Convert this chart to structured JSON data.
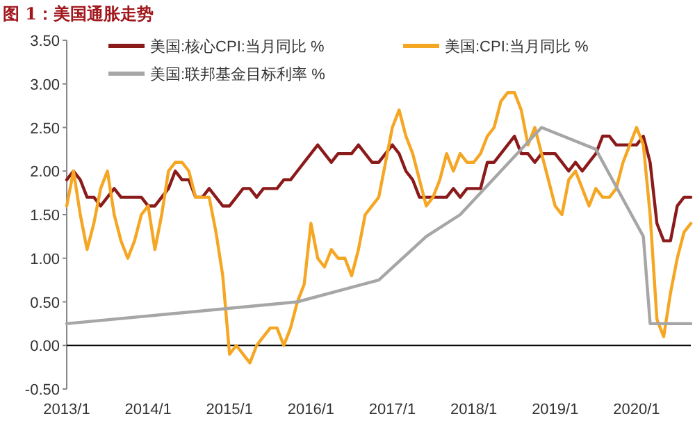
{
  "chart_data": {
    "type": "line",
    "title": "图 1：美国通胀走势",
    "legend": "top",
    "line_style": "solid",
    "marker": "none",
    "x": [
      "2013-01",
      "2013-02",
      "2013-03",
      "2013-04",
      "2013-05",
      "2013-06",
      "2013-07",
      "2013-08",
      "2013-09",
      "2013-10",
      "2013-11",
      "2013-12",
      "2014-01",
      "2014-02",
      "2014-03",
      "2014-04",
      "2014-05",
      "2014-06",
      "2014-07",
      "2014-08",
      "2014-09",
      "2014-10",
      "2014-11",
      "2014-12",
      "2015-01",
      "2015-02",
      "2015-03",
      "2015-04",
      "2015-05",
      "2015-06",
      "2015-07",
      "2015-08",
      "2015-09",
      "2015-10",
      "2015-11",
      "2015-12",
      "2016-01",
      "2016-02",
      "2016-03",
      "2016-04",
      "2016-05",
      "2016-06",
      "2016-07",
      "2016-08",
      "2016-09",
      "2016-10",
      "2016-11",
      "2016-12",
      "2017-01",
      "2017-02",
      "2017-03",
      "2017-04",
      "2017-05",
      "2017-06",
      "2017-07",
      "2017-08",
      "2017-09",
      "2017-10",
      "2017-11",
      "2017-12",
      "2018-01",
      "2018-02",
      "2018-03",
      "2018-04",
      "2018-05",
      "2018-06",
      "2018-07",
      "2018-08",
      "2018-09",
      "2018-10",
      "2018-11",
      "2018-12",
      "2019-01",
      "2019-02",
      "2019-03",
      "2019-04",
      "2019-05",
      "2019-06",
      "2019-07",
      "2019-08",
      "2019-09",
      "2019-10",
      "2019-11",
      "2019-12",
      "2020-01",
      "2020-02",
      "2020-03",
      "2020-04",
      "2020-05",
      "2020-06",
      "2020-07",
      "2020-08",
      "2020-09"
    ],
    "series": [
      {
        "name": "美国:核心CPI:当月同比 %",
        "color": "#8b1a1a",
        "values": [
          1.9,
          2.0,
          1.9,
          1.7,
          1.7,
          1.6,
          1.7,
          1.8,
          1.7,
          1.7,
          1.7,
          1.7,
          1.6,
          1.6,
          1.7,
          1.8,
          2.0,
          1.9,
          1.9,
          1.7,
          1.7,
          1.8,
          1.7,
          1.6,
          1.6,
          1.7,
          1.8,
          1.8,
          1.7,
          1.8,
          1.8,
          1.8,
          1.9,
          1.9,
          2.0,
          2.1,
          2.2,
          2.3,
          2.2,
          2.1,
          2.2,
          2.2,
          2.2,
          2.3,
          2.2,
          2.1,
          2.1,
          2.2,
          2.3,
          2.2,
          2.0,
          1.9,
          1.7,
          1.7,
          1.7,
          1.7,
          1.7,
          1.8,
          1.7,
          1.8,
          1.8,
          1.8,
          2.1,
          2.1,
          2.2,
          2.3,
          2.4,
          2.2,
          2.2,
          2.1,
          2.2,
          2.2,
          2.2,
          2.1,
          2.0,
          2.1,
          2.0,
          2.1,
          2.2,
          2.4,
          2.4,
          2.3,
          2.3,
          2.3,
          2.3,
          2.4,
          2.1,
          1.4,
          1.2,
          1.2,
          1.6,
          1.7,
          1.7
        ]
      },
      {
        "name": "美国:CPI:当月同比 %",
        "color": "#f5a623",
        "values": [
          1.6,
          2.0,
          1.5,
          1.1,
          1.4,
          1.8,
          2.0,
          1.5,
          1.2,
          1.0,
          1.2,
          1.5,
          1.6,
          1.1,
          1.5,
          2.0,
          2.1,
          2.1,
          2.0,
          1.7,
          1.7,
          1.7,
          1.3,
          0.8,
          -0.1,
          0.0,
          -0.1,
          -0.2,
          0.0,
          0.1,
          0.2,
          0.2,
          0.0,
          0.2,
          0.5,
          0.7,
          1.4,
          1.0,
          0.9,
          1.1,
          1.0,
          1.0,
          0.8,
          1.1,
          1.5,
          1.6,
          1.7,
          2.1,
          2.5,
          2.7,
          2.4,
          2.2,
          1.9,
          1.6,
          1.7,
          1.9,
          2.2,
          2.0,
          2.2,
          2.1,
          2.1,
          2.2,
          2.4,
          2.5,
          2.8,
          2.9,
          2.9,
          2.7,
          2.3,
          2.5,
          2.2,
          1.9,
          1.6,
          1.5,
          1.9,
          2.0,
          1.8,
          1.6,
          1.8,
          1.7,
          1.7,
          1.8,
          2.1,
          2.3,
          2.5,
          2.3,
          1.5,
          0.3,
          0.1,
          0.6,
          1.0,
          1.3,
          1.4
        ]
      },
      {
        "name": "美国:联邦基金目标利率 %",
        "color": "#a6a6a6",
        "x": [
          "2013-01",
          "2015-11",
          "2016-11",
          "2017-06",
          "2017-11",
          "2018-05",
          "2018-11",
          "2019-07",
          "2020-02",
          "2020-03",
          "2020-09"
        ],
        "values": [
          0.25,
          0.5,
          0.75,
          1.25,
          1.5,
          2.0,
          2.5,
          2.25,
          1.25,
          0.25,
          0.25
        ]
      }
    ],
    "xlim": [
      "2013-01",
      "2020-09"
    ],
    "xticks": [
      {
        "value": "2013-01",
        "label": "2013/1"
      },
      {
        "value": "2014-01",
        "label": "2014/1"
      },
      {
        "value": "2015-01",
        "label": "2015/1"
      },
      {
        "value": "2016-01",
        "label": "2016/1"
      },
      {
        "value": "2017-01",
        "label": "2017/1"
      },
      {
        "value": "2018-01",
        "label": "2018/1"
      },
      {
        "value": "2019-01",
        "label": "2019/1"
      },
      {
        "value": "2020-01",
        "label": "2020/1"
      }
    ],
    "ylim": [
      -0.5,
      3.5
    ],
    "yticks": [
      {
        "value": -0.5,
        "label": "-0.50"
      },
      {
        "value": 0,
        "label": "0.00"
      },
      {
        "value": 0.5,
        "label": "0.50"
      },
      {
        "value": 1,
        "label": "1.00"
      },
      {
        "value": 1.5,
        "label": "1.50"
      },
      {
        "value": 2,
        "label": "2.00"
      },
      {
        "value": 2.5,
        "label": "2.50"
      },
      {
        "value": 3,
        "label": "3.00"
      },
      {
        "value": 3.5,
        "label": "3.50"
      }
    ]
  }
}
